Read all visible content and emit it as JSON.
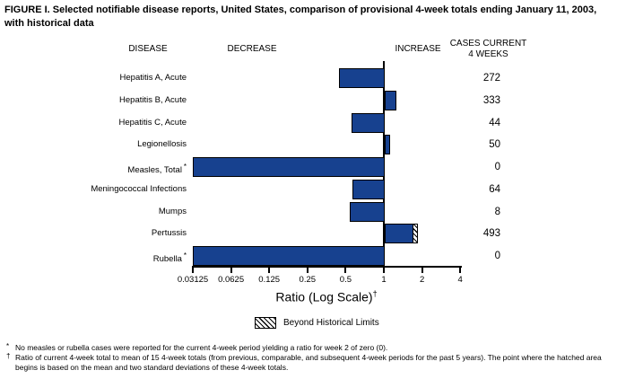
{
  "title": "FIGURE I. Selected notifiable disease reports, United States, comparison of provisional 4-week totals ending January 11, 2003, with historical data",
  "columns": {
    "disease": "DISEASE",
    "decrease": "DECREASE",
    "increase": "INCREASE",
    "cases_line1": "CASES CURRENT",
    "cases_line2": "4 WEEKS"
  },
  "chart_data": {
    "type": "bar",
    "orientation": "horizontal",
    "scale": "log2",
    "baseline": 1,
    "xlim": [
      0.03125,
      4
    ],
    "ticks": [
      0.03125,
      0.0625,
      0.125,
      0.25,
      0.5,
      1,
      2,
      4
    ],
    "tick_labels": [
      "0.03125",
      "0.0625",
      "0.125",
      "0.25",
      "0.5",
      "1",
      "2",
      "4"
    ],
    "axis_label": "Ratio (Log Scale)",
    "axis_label_superscript": "†",
    "bar_color": "#17418F",
    "legend": {
      "label": "Beyond Historical Limits"
    },
    "rows": [
      {
        "label": "Hepatitis A, Acute",
        "footnote_marker": "",
        "ratio": 0.44,
        "ratio_is_zero": false,
        "cases": "272"
      },
      {
        "label": "Hepatitis B, Acute",
        "footnote_marker": "",
        "ratio": 1.26,
        "ratio_is_zero": false,
        "cases": "333"
      },
      {
        "label": "Hepatitis C, Acute",
        "footnote_marker": "",
        "ratio": 0.56,
        "ratio_is_zero": false,
        "cases": "44"
      },
      {
        "label": "Legionellosis",
        "footnote_marker": "",
        "ratio": 1.12,
        "ratio_is_zero": false,
        "cases": "50"
      },
      {
        "label": "Measles, Total",
        "footnote_marker": "*",
        "ratio": 0.03125,
        "ratio_is_zero": true,
        "cases": "0"
      },
      {
        "label": "Meningococcal Infections",
        "footnote_marker": "",
        "ratio": 0.57,
        "ratio_is_zero": false,
        "cases": "64"
      },
      {
        "label": "Mumps",
        "footnote_marker": "",
        "ratio": 0.54,
        "ratio_is_zero": false,
        "cases": "8"
      },
      {
        "label": "Pertussis",
        "footnote_marker": "",
        "ratio": 1.86,
        "ratio_is_zero": false,
        "beyond_limit_from": 1.74,
        "cases": "493"
      },
      {
        "label": "Rubella",
        "footnote_marker": "*",
        "ratio": 0.03125,
        "ratio_is_zero": true,
        "cases": "0"
      }
    ]
  },
  "footnotes": [
    {
      "marker": "*",
      "text": "No measles or rubella cases were reported for the current 4-week period yielding a ratio for week 2 of zero (0)."
    },
    {
      "marker": "†",
      "text": "Ratio of current 4-week total to mean of 15 4-week totals (from previous, comparable, and subsequent 4-week periods for the past 5 years). The point where the hatched area begins is based on the mean and two standard deviations of these 4-week totals."
    }
  ]
}
